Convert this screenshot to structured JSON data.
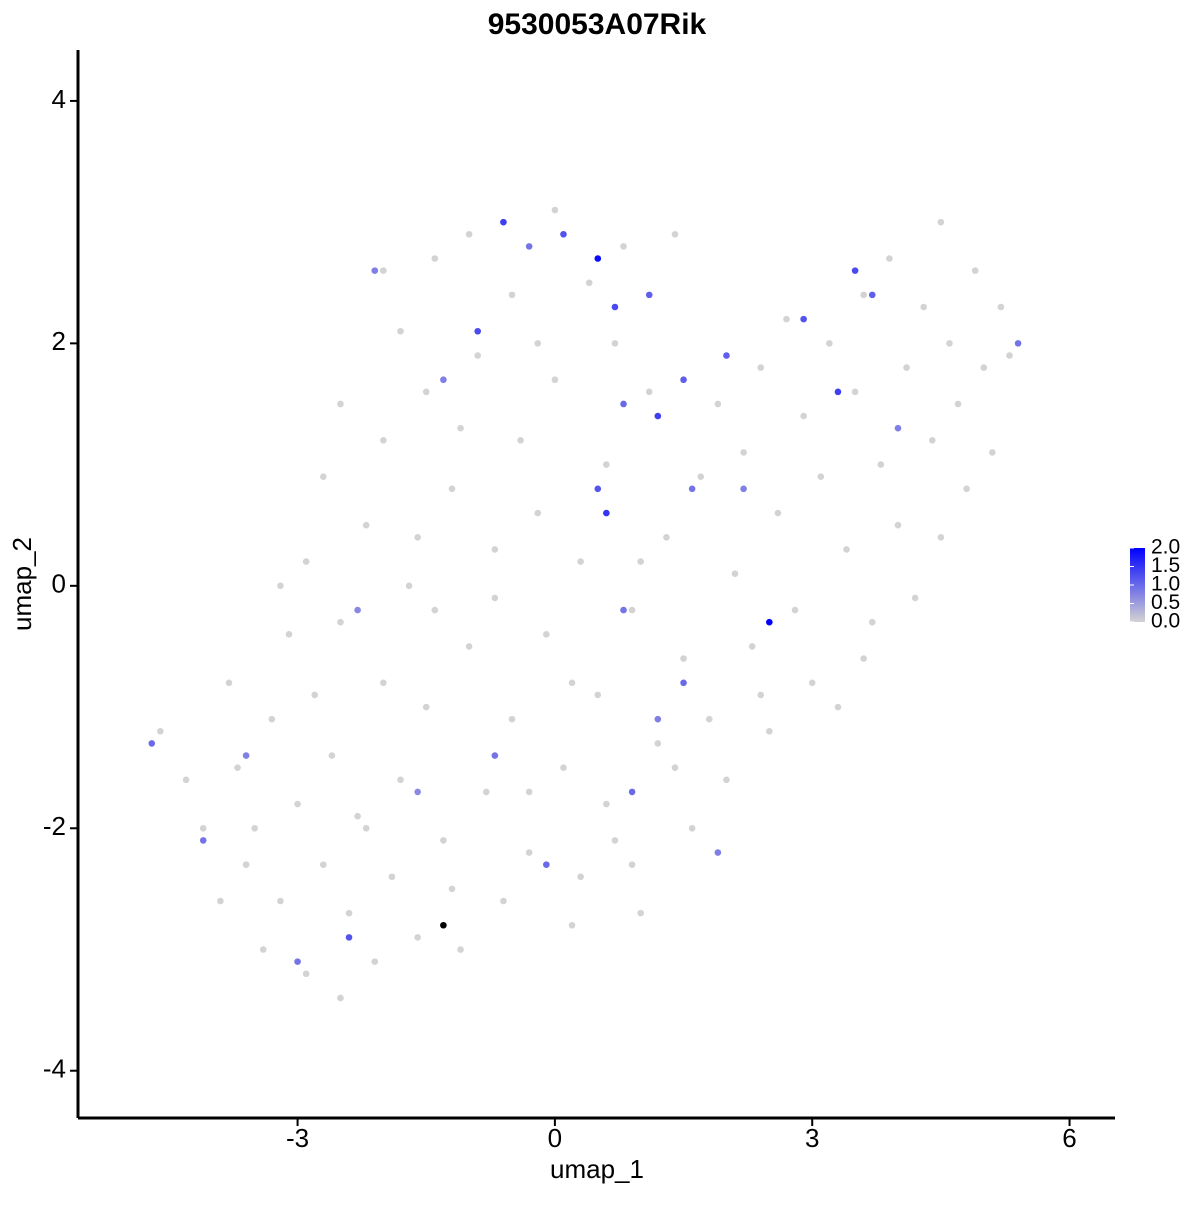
{
  "chart_data": {
    "type": "scatter",
    "title": "9530053A07Rik",
    "x_label": "umap_1",
    "y_label": "umap_2",
    "xlim": [
      -5.56,
      6.53
    ],
    "ylim": [
      -4.39,
      4.42
    ],
    "xticks": [
      -3,
      0,
      3,
      6
    ],
    "yticks": [
      -4,
      -2,
      0,
      2,
      4
    ],
    "color_low": "#d3d3d3",
    "color_high": "#0000ff",
    "colorbar": {
      "lim": [
        0,
        2
      ],
      "ticks": [
        {
          "value": 2,
          "label": "2.0"
        },
        1.5,
        {
          "value": 1,
          "label": "1.0"
        },
        0.5,
        {
          "value": 0,
          "label": "0.0"
        }
      ]
    },
    "x": [
      -4.6,
      -4.3,
      -4.1,
      -3.9,
      -3.7,
      -3.6,
      -3.4,
      -3.3,
      -3.2,
      -3.1,
      -3.0,
      -2.9,
      -2.8,
      -2.7,
      -2.6,
      -2.5,
      -2.5,
      -2.4,
      -2.3,
      -2.2,
      -2.1,
      -2.0,
      -2.0,
      -1.9,
      -1.8,
      -1.8,
      -1.7,
      -1.6,
      -1.5,
      -1.5,
      -1.4,
      -1.3,
      -1.2,
      -1.1,
      -1.0,
      -1.0,
      -0.9,
      -0.8,
      -0.7,
      -0.6,
      -0.5,
      -0.5,
      -0.4,
      -0.3,
      -0.2,
      -0.1,
      0.0,
      0.0,
      0.1,
      0.2,
      0.3,
      0.4,
      0.5,
      0.6,
      0.7,
      0.8,
      0.9,
      1.0,
      1.1,
      1.2,
      1.3,
      1.4,
      1.5,
      1.6,
      1.7,
      1.8,
      1.9,
      2.0,
      2.1,
      2.2,
      2.3,
      2.4,
      2.5,
      2.6,
      2.7,
      2.8,
      2.9,
      3.0,
      3.1,
      3.2,
      3.3,
      3.4,
      3.5,
      3.6,
      3.7,
      3.8,
      3.9,
      4.0,
      4.1,
      4.2,
      4.3,
      4.4,
      4.5,
      4.5,
      4.6,
      4.7,
      4.8,
      4.9,
      5.0,
      5.1,
      5.2,
      5.3,
      -3.8,
      -2.9,
      -2.5,
      -2.0,
      -1.6,
      -1.1,
      -0.7,
      -0.2,
      0.2,
      0.6,
      1.0,
      -3.5,
      -2.2,
      -1.2,
      0.3,
      1.4,
      2.4,
      3.6,
      -1.4,
      -0.3,
      0.7,
      -2.7,
      -3.2,
      0.9,
      1.9,
      -4.7,
      -4.1,
      -3.6,
      -3.0,
      -2.4,
      -2.3,
      -2.1,
      -1.6,
      -1.3,
      -0.9,
      -0.6,
      -0.3,
      0.1,
      0.5,
      0.8,
      0.7,
      1.2,
      1.5,
      1.1,
      0.6,
      0.5,
      1.6,
      2.0,
      2.5,
      2.9,
      3.5,
      3.7,
      3.3,
      1.2,
      0.9,
      -0.1,
      -0.7,
      0.8,
      1.5,
      2.2,
      4.0,
      5.4,
      -1.3
    ],
    "values": [
      -1.2,
      -1.6,
      -2.0,
      -2.6,
      -1.5,
      -2.3,
      -3.0,
      -1.1,
      -2.6,
      -0.4,
      -1.8,
      -3.2,
      -0.9,
      -2.3,
      -1.4,
      -3.4,
      -0.3,
      -2.7,
      -1.9,
      0.5,
      -3.1,
      -0.8,
      1.2,
      -2.4,
      -1.6,
      2.1,
      0.0,
      -2.9,
      1.6,
      -1.0,
      2.7,
      -2.1,
      0.8,
      -3.0,
      2.9,
      -0.5,
      1.9,
      -1.7,
      0.3,
      -2.6,
      2.4,
      -1.1,
      1.2,
      -2.2,
      0.6,
      -0.4,
      3.1,
      1.7,
      -1.5,
      -2.8,
      0.2,
      2.5,
      -0.9,
      1.0,
      -2.1,
      2.8,
      -0.2,
      -2.7,
      1.6,
      -1.3,
      0.4,
      2.9,
      -0.6,
      -2.0,
      0.9,
      -1.1,
      1.5,
      -1.6,
      0.1,
      1.1,
      -0.5,
      1.8,
      -1.2,
      0.6,
      2.2,
      -0.2,
      1.4,
      -0.8,
      0.9,
      2.0,
      -1.0,
      0.3,
      1.6,
      2.4,
      -0.3,
      1.0,
      2.7,
      0.5,
      1.8,
      -0.1,
      2.3,
      1.2,
      3.0,
      0.4,
      2.0,
      1.5,
      0.8,
      2.6,
      1.8,
      1.1,
      2.3,
      1.9,
      -0.8,
      0.2,
      1.5,
      2.6,
      0.4,
      1.3,
      -0.1,
      2.0,
      -0.8,
      -1.8,
      0.2,
      -2.0,
      -2.0,
      -2.5,
      -2.4,
      -1.5,
      -0.9,
      -0.6,
      -0.2,
      -1.7,
      2.0,
      0.9,
      0.0,
      -2.3,
      -2.2,
      -1.3,
      -2.1,
      -1.4,
      -3.1,
      -2.9,
      -0.2,
      2.6,
      -1.7,
      1.7,
      2.1,
      3.0,
      2.8,
      2.9,
      2.7,
      1.5,
      2.3,
      1.4,
      1.7,
      2.4,
      0.6,
      0.8,
      0.8,
      1.9,
      -0.3,
      2.2,
      2.6,
      2.4,
      1.6,
      -1.1,
      -1.7,
      -2.3,
      -1.4,
      -0.2,
      -0.8,
      0.8,
      1.3,
      2.0,
      -2.8
    ],
    "expression": [
      0,
      0,
      0,
      0,
      0,
      0,
      0,
      0,
      0,
      0,
      0,
      0,
      0,
      0,
      0,
      0,
      0,
      0,
      0,
      0,
      0,
      0,
      0,
      0,
      0,
      0,
      0,
      0,
      0,
      0,
      0,
      0,
      0,
      0,
      0,
      0,
      0,
      0,
      0,
      0,
      0,
      0,
      0,
      0,
      0,
      0,
      0,
      0,
      0,
      0,
      0,
      0,
      0,
      0,
      0,
      0,
      0,
      0,
      0,
      0,
      0,
      0,
      0,
      0,
      0,
      0,
      0,
      0,
      0,
      0,
      0,
      0,
      0,
      0,
      0,
      0,
      0,
      0,
      0,
      0,
      0,
      0,
      0,
      0,
      0,
      0,
      0,
      0,
      0,
      0,
      0,
      0,
      0,
      0,
      0,
      0,
      0,
      0,
      0,
      0,
      0,
      0,
      0,
      0,
      0,
      0,
      0,
      0,
      0,
      0,
      0,
      0,
      0,
      0,
      0,
      0,
      0,
      0,
      0,
      0,
      0,
      0,
      0,
      0,
      0,
      0,
      0.8,
      1.0,
      0.9,
      0.8,
      0.9,
      1.2,
      0.7,
      0.8,
      0.7,
      0.8,
      1.3,
      1.4,
      0.9,
      1.2,
      1.9,
      1.0,
      1.3,
      1.4,
      1.1,
      1.1,
      1.5,
      1.2,
      0.9,
      1.1,
      2.0,
      1.2,
      1.3,
      1.1,
      1.4,
      0.8,
      1.0,
      1.0,
      0.9,
      0.9,
      1.0,
      0.8,
      0.8,
      0.9
    ]
  }
}
